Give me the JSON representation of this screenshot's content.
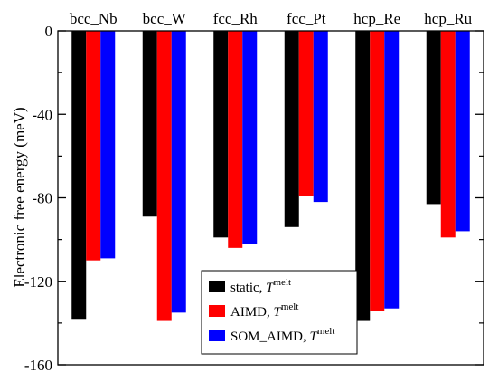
{
  "chart_data": {
    "type": "bar",
    "categories": [
      "bcc_Nb",
      "bcc_W",
      "fcc_Rh",
      "fcc_Pt",
      "hcp_Re",
      "hcp_Ru"
    ],
    "series": [
      {
        "name": "static, T",
        "name_sup": "melt",
        "color": "#000000",
        "values": [
          -138,
          -89,
          -99,
          -94,
          -139,
          -83
        ]
      },
      {
        "name": "AIMD, T",
        "name_sup": "melt",
        "color": "#ff0000",
        "values": [
          -110,
          -139,
          -104,
          -79,
          -134,
          -99
        ]
      },
      {
        "name": "SOM_AIMD, T",
        "name_sup": "melt",
        "color": "#0000ff",
        "values": [
          -109,
          -135,
          -102,
          -82,
          -133,
          -96
        ]
      }
    ],
    "ylabel": "Electronic free energy (meV)",
    "ylim": [
      -160,
      0
    ],
    "yticks": [
      "0",
      "-40",
      "-80",
      "-120",
      "-160"
    ],
    "ytick_values": [
      0,
      -40,
      -80,
      -120,
      -160
    ],
    "legend_position": "bottom-center",
    "grid": false
  }
}
